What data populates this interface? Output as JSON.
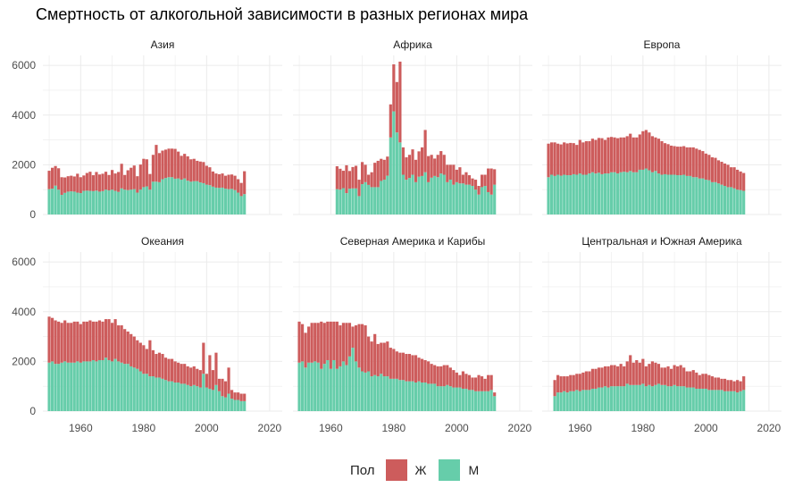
{
  "chart_data": {
    "type": "bar",
    "stacked": true,
    "title": "Смертность от алкогольной зависимости в разных регионах мира",
    "xlabel": "",
    "ylabel": "",
    "legend": {
      "title": "Пол",
      "position": "bottom",
      "items": [
        {
          "label": "Ж",
          "color": "#CD5C5C"
        },
        {
          "label": "М",
          "color": "#66CDAA"
        }
      ]
    },
    "xlim": [
      1948,
      2024
    ],
    "ylim": [
      0,
      6400
    ],
    "x_ticks": [
      1960,
      1980,
      2000,
      2020
    ],
    "y_ticks": [
      0,
      2000,
      4000,
      6000
    ],
    "grid": true,
    "years_start": 1950,
    "panels": [
      {
        "name": "Азия",
        "male": [
          1020,
          1040,
          1160,
          1000,
          790,
          870,
          920,
          930,
          920,
          880,
          860,
          950,
          960,
          950,
          940,
          960,
          920,
          940,
          1000,
          970,
          1000,
          950,
          910,
          1050,
          1000,
          980,
          1000,
          1020,
          880,
          1000,
          1100,
          1130,
          1000,
          1320,
          1320,
          1300,
          1420,
          1470,
          1500,
          1500,
          1440,
          1450,
          1400,
          1450,
          1360,
          1320,
          1340,
          1340,
          1290,
          1260,
          1200,
          1180,
          1120,
          1080,
          1070,
          1080,
          1040,
          1020,
          1030,
          980,
          880,
          740,
          820
        ],
        "female": [
          740,
          840,
          790,
          860,
          710,
          620,
          620,
          630,
          610,
          760,
          640,
          620,
          710,
          770,
          640,
          750,
          690,
          700,
          720,
          620,
          790,
          700,
          800,
          990,
          590,
          800,
          880,
          950,
          660,
          1010,
          1140,
          1090,
          630,
          1080,
          1480,
          1170,
          1150,
          1140,
          1150,
          1150,
          1200,
          1080,
          960,
          990,
          980,
          900,
          900,
          820,
          840,
          850,
          760,
          720,
          610,
          570,
          550,
          570,
          520,
          580,
          580,
          580,
          540,
          530,
          920
        ]
      },
      {
        "name": "Африка",
        "male": [
          null,
          null,
          null,
          null,
          null,
          null,
          null,
          null,
          null,
          null,
          null,
          null,
          1020,
          1000,
          1060,
          860,
          1040,
          1050,
          1050,
          740,
          1220,
          1300,
          1190,
          1100,
          1100,
          1100,
          1350,
          1400,
          1560,
          3100,
          4150,
          3300,
          2900,
          1600,
          1400,
          1470,
          1600,
          1300,
          1520,
          1550,
          1700,
          1300,
          1480,
          1550,
          1500,
          1650,
          1600,
          1300,
          1400,
          1200,
          1300,
          1250,
          1250,
          1200,
          1200,
          1150,
          1000,
          800,
          1100,
          1150,
          900,
          800,
          1200
        ],
        "female": [
          null,
          null,
          null,
          null,
          null,
          null,
          null,
          null,
          null,
          null,
          null,
          null,
          920,
          840,
          700,
          1120,
          710,
          860,
          910,
          660,
          890,
          700,
          410,
          600,
          980,
          1060,
          890,
          800,
          770,
          1330,
          1890,
          2030,
          3250,
          1100,
          900,
          930,
          1020,
          900,
          1020,
          1150,
          1700,
          1050,
          920,
          700,
          900,
          900,
          800,
          700,
          600,
          800,
          500,
          650,
          350,
          500,
          380,
          300,
          400,
          350,
          500,
          450,
          950,
          1050,
          620
        ]
      },
      {
        "name": "Европа",
        "male": [
          1500,
          1600,
          1550,
          1600,
          1560,
          1600,
          1580,
          1580,
          1620,
          1600,
          1650,
          1600,
          1600,
          1650,
          1700,
          1650,
          1680,
          1620,
          1650,
          1650,
          1700,
          1700,
          1650,
          1700,
          1720,
          1700,
          1750,
          1700,
          1700,
          1800,
          1800,
          1850,
          1780,
          1700,
          1750,
          1650,
          1600,
          1620,
          1600,
          1600,
          1600,
          1580,
          1580,
          1600,
          1550,
          1550,
          1500,
          1500,
          1450,
          1450,
          1400,
          1380,
          1300,
          1300,
          1250,
          1200,
          1150,
          1100,
          1100,
          1050,
          1000,
          980,
          950
        ],
        "female": [
          1350,
          1300,
          1350,
          1250,
          1260,
          1300,
          1280,
          1300,
          1250,
          1200,
          1350,
          1300,
          1350,
          1300,
          1350,
          1350,
          1400,
          1450,
          1350,
          1450,
          1420,
          1400,
          1420,
          1400,
          1380,
          1450,
          1500,
          1400,
          1400,
          1420,
          1550,
          1550,
          1520,
          1450,
          1350,
          1400,
          1350,
          1250,
          1230,
          1170,
          1150,
          1150,
          1150,
          1150,
          1150,
          1150,
          1200,
          1150,
          1150,
          1100,
          1050,
          1020,
          1000,
          980,
          930,
          920,
          900,
          900,
          800,
          850,
          800,
          750,
          720
        ]
      },
      {
        "name": "Океания",
        "male": [
          1950,
          2000,
          1900,
          1900,
          1950,
          2000,
          1950,
          1950,
          1950,
          2000,
          1950,
          2000,
          2000,
          2000,
          2050,
          2000,
          2050,
          2050,
          2150,
          2050,
          2000,
          2100,
          2000,
          1950,
          1900,
          1900,
          1800,
          1750,
          1700,
          1600,
          1500,
          1500,
          1400,
          1400,
          1350,
          1350,
          1300,
          1250,
          1200,
          1200,
          1150,
          1150,
          1100,
          1100,
          1050,
          1000,
          1050,
          1000,
          950,
          1500,
          950,
          900,
          850,
          1050,
          800,
          600,
          550,
          700,
          500,
          450,
          450,
          400,
          400
        ],
        "female": [
          1850,
          1750,
          1750,
          1700,
          1600,
          1650,
          1600,
          1600,
          1650,
          1600,
          1550,
          1600,
          1600,
          1650,
          1550,
          1600,
          1600,
          1550,
          1550,
          1650,
          1550,
          1600,
          1450,
          1500,
          1400,
          1300,
          1300,
          1250,
          1150,
          1150,
          1150,
          1000,
          1450,
          1050,
          950,
          1000,
          1000,
          900,
          900,
          900,
          850,
          800,
          800,
          800,
          750,
          750,
          750,
          700,
          700,
          1250,
          550,
          1350,
          800,
          1300,
          500,
          700,
          650,
          1050,
          350,
          300,
          300,
          300,
          300
        ]
      },
      {
        "name": "Северная Америка и Карибы",
        "male": [
          1950,
          2000,
          1750,
          1950,
          1950,
          2000,
          1950,
          1700,
          1900,
          2050,
          1700,
          2050,
          1700,
          1800,
          2000,
          1850,
          2200,
          2550,
          2000,
          1750,
          1600,
          1550,
          1600,
          1400,
          1450,
          1400,
          1500,
          1400,
          1400,
          1300,
          1300,
          1300,
          1250,
          1250,
          1200,
          1200,
          1200,
          1150,
          1200,
          1150,
          1150,
          1100,
          1100,
          1100,
          1000,
          1000,
          1000,
          1050,
          1000,
          950,
          950,
          950,
          900,
          900,
          850,
          850,
          800,
          800,
          800,
          800,
          800,
          850,
          600
        ],
        "female": [
          1650,
          1500,
          1400,
          1450,
          1600,
          1550,
          1600,
          1900,
          1650,
          1550,
          1900,
          1550,
          1900,
          1650,
          1550,
          1700,
          1350,
          850,
          1450,
          1750,
          1900,
          1900,
          1400,
          1400,
          1650,
          1300,
          1250,
          1350,
          1400,
          1250,
          1200,
          1100,
          1100,
          1100,
          1100,
          1100,
          1050,
          1100,
          950,
          950,
          900,
          900,
          800,
          750,
          800,
          800,
          850,
          800,
          750,
          700,
          600,
          500,
          700,
          600,
          600,
          500,
          550,
          650,
          600,
          500,
          650,
          600,
          150
        ]
      },
      {
        "name": "Центральная и Южная Америка",
        "male": [
          null,
          null,
          600,
          750,
          750,
          800,
          750,
          800,
          800,
          850,
          800,
          850,
          850,
          850,
          900,
          900,
          950,
          950,
          1000,
          950,
          1000,
          1000,
          1000,
          1000,
          1000,
          1100,
          1050,
          1050,
          1050,
          1050,
          1100,
          1000,
          1050,
          1000,
          1050,
          1100,
          1050,
          1050,
          1000,
          1000,
          1050,
          1000,
          1000,
          1000,
          950,
          950,
          950,
          900,
          900,
          900,
          900,
          850,
          850,
          850,
          850,
          850,
          800,
          800,
          800,
          800,
          750,
          800,
          850
        ],
        "female": [
          null,
          null,
          650,
          700,
          650,
          600,
          650,
          650,
          650,
          650,
          700,
          700,
          750,
          750,
          800,
          800,
          800,
          800,
          800,
          850,
          850,
          850,
          800,
          900,
          800,
          900,
          1200,
          900,
          1000,
          900,
          1000,
          800,
          850,
          1000,
          900,
          800,
          700,
          700,
          800,
          700,
          800,
          800,
          850,
          750,
          650,
          650,
          700,
          650,
          550,
          600,
          600,
          600,
          550,
          500,
          500,
          450,
          500,
          450,
          450,
          400,
          500,
          400,
          550
        ]
      }
    ]
  }
}
